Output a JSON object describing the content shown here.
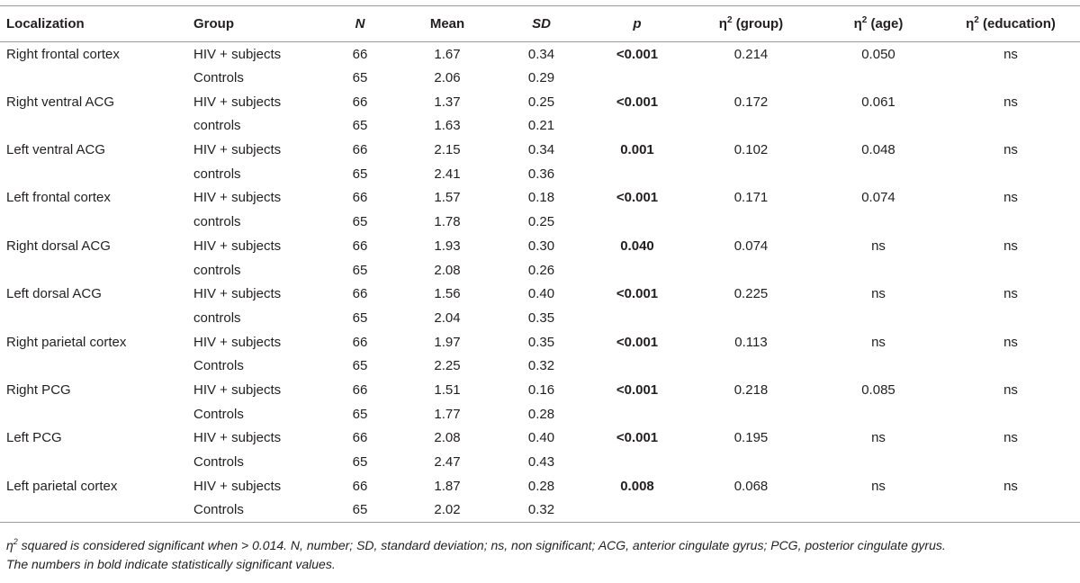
{
  "header": {
    "localization": "Localization",
    "group": "Group",
    "n": "N",
    "mean": "Mean",
    "sd": "SD",
    "p": "p",
    "eta_group": "η",
    "eta_group_sup": "2",
    "eta_group_rest": " (group)",
    "eta_age": "η",
    "eta_age_sup": "2",
    "eta_age_rest": " (age)",
    "eta_edu": "η",
    "eta_edu_sup": "2",
    "eta_edu_rest": " (education)"
  },
  "rows": [
    {
      "loc": "Right frontal cortex",
      "g1": "HIV + subjects",
      "n1": "66",
      "m1": "1.67",
      "sd1": "0.34",
      "p": "<0.001",
      "eg": "0.214",
      "ea": "0.050",
      "ee": "ns",
      "g2": "Controls",
      "n2": "65",
      "m2": "2.06",
      "sd2": "0.29"
    },
    {
      "loc": "Right ventral ACG",
      "g1": "HIV + subjects",
      "n1": "66",
      "m1": "1.37",
      "sd1": "0.25",
      "p": "<0.001",
      "eg": "0.172",
      "ea": "0.061",
      "ee": "ns",
      "g2": "controls",
      "n2": "65",
      "m2": "1.63",
      "sd2": "0.21"
    },
    {
      "loc": "Left ventral ACG",
      "g1": "HIV + subjects",
      "n1": "66",
      "m1": "2.15",
      "sd1": "0.34",
      "p": "0.001",
      "eg": "0.102",
      "ea": "0.048",
      "ee": "ns",
      "g2": "controls",
      "n2": "65",
      "m2": "2.41",
      "sd2": "0.36"
    },
    {
      "loc": "Left frontal cortex",
      "g1": "HIV + subjects",
      "n1": "66",
      "m1": "1.57",
      "sd1": "0.18",
      "p": "<0.001",
      "eg": "0.171",
      "ea": "0.074",
      "ee": "ns",
      "g2": "controls",
      "n2": "65",
      "m2": "1.78",
      "sd2": "0.25"
    },
    {
      "loc": "Right dorsal ACG",
      "g1": "HIV + subjects",
      "n1": "66",
      "m1": "1.93",
      "sd1": "0.30",
      "p": "0.040",
      "eg": "0.074",
      "ea": "ns",
      "ee": "ns",
      "g2": "controls",
      "n2": "65",
      "m2": "2.08",
      "sd2": "0.26"
    },
    {
      "loc": "Left dorsal ACG",
      "g1": "HIV + subjects",
      "n1": "66",
      "m1": "1.56",
      "sd1": "0.40",
      "p": "<0.001",
      "eg": "0.225",
      "ea": "ns",
      "ee": "ns",
      "g2": "controls",
      "n2": "65",
      "m2": "2.04",
      "sd2": "0.35"
    },
    {
      "loc": "Right parietal cortex",
      "g1": "HIV + subjects",
      "n1": "66",
      "m1": "1.97",
      "sd1": "0.35",
      "p": "<0.001",
      "eg": "0.113",
      "ea": "ns",
      "ee": "ns",
      "g2": "Controls",
      "n2": "65",
      "m2": "2.25",
      "sd2": "0.32"
    },
    {
      "loc": "Right PCG",
      "g1": "HIV + subjects",
      "n1": "66",
      "m1": "1.51",
      "sd1": "0.16",
      "p": "<0.001",
      "eg": "0.218",
      "ea": "0.085",
      "ee": "ns",
      "g2": "Controls",
      "n2": "65",
      "m2": "1.77",
      "sd2": "0.28"
    },
    {
      "loc": "Left PCG",
      "g1": "HIV + subjects",
      "n1": "66",
      "m1": "2.08",
      "sd1": "0.40",
      "p": "<0.001",
      "eg": "0.195",
      "ea": "ns",
      "ee": "ns",
      "g2": "Controls",
      "n2": "65",
      "m2": "2.47",
      "sd2": "0.43"
    },
    {
      "loc": "Left parietal cortex",
      "g1": "HIV + subjects",
      "n1": "66",
      "m1": "1.87",
      "sd1": "0.28",
      "p": "0.008",
      "eg": "0.068",
      "ea": "ns",
      "ee": "ns",
      "g2": "Controls",
      "n2": "65",
      "m2": "2.02",
      "sd2": "0.32"
    }
  ],
  "footnote": {
    "eta": "η",
    "eta_sup": "2",
    "line1": " squared is considered significant when > 0.014. N, number; SD, standard deviation; ns, non significant; ACG, anterior cingulate gyrus; PCG, posterior cingulate gyrus.",
    "line2": "The numbers in bold indicate statistically significant values."
  }
}
